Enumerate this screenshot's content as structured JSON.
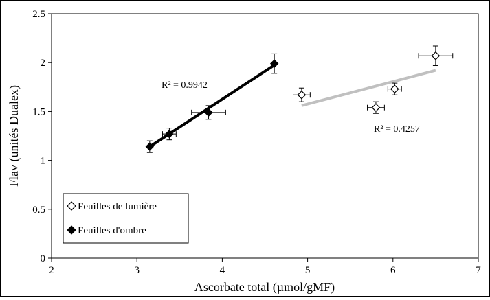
{
  "chart_data": {
    "type": "scatter",
    "xlabel": "Ascorbate total (µmol/gMF)",
    "ylabel": "Flav (unités Dualex)",
    "xlim": [
      2,
      7
    ],
    "ylim": [
      0,
      2.5
    ],
    "x_ticks": [
      "2",
      "3",
      "4",
      "5",
      "6",
      "7"
    ],
    "y_ticks": [
      "0",
      "0.5",
      "1",
      "1.5",
      "2",
      "2.5"
    ],
    "grid": false,
    "legend_position": "bottom-left",
    "series": [
      {
        "name": "Feuilles de lumière",
        "marker": "hollow-diamond",
        "color": "#000000",
        "trendline_color": "#c0c0c0",
        "r2_label": "R² = 0.4257",
        "trendline": {
          "x1": 4.93,
          "y1": 1.56,
          "x2": 6.5,
          "y2": 1.92
        },
        "points": [
          {
            "x": 4.93,
            "y": 1.67,
            "xerr": 0.1,
            "yerr": 0.07
          },
          {
            "x": 5.8,
            "y": 1.54,
            "xerr": 0.1,
            "yerr": 0.06
          },
          {
            "x": 6.02,
            "y": 1.73,
            "xerr": 0.08,
            "yerr": 0.06
          },
          {
            "x": 6.5,
            "y": 2.07,
            "xerr": 0.2,
            "yerr": 0.1
          }
        ]
      },
      {
        "name": "Feuilles d'ombre",
        "marker": "filled-diamond",
        "color": "#000000",
        "trendline_color": "#000000",
        "r2_label": "R² = 0.9942",
        "trendline": {
          "x1": 3.15,
          "y1": 1.14,
          "x2": 4.62,
          "y2": 1.98
        },
        "points": [
          {
            "x": 3.15,
            "y": 1.14,
            "xerr": 0.0,
            "yerr": 0.06
          },
          {
            "x": 3.38,
            "y": 1.27,
            "xerr": 0.08,
            "yerr": 0.06
          },
          {
            "x": 3.84,
            "y": 1.49,
            "xerr": 0.2,
            "yerr": 0.07
          },
          {
            "x": 4.61,
            "y": 1.99,
            "xerr": 0.0,
            "yerr": 0.1
          }
        ]
      }
    ]
  }
}
